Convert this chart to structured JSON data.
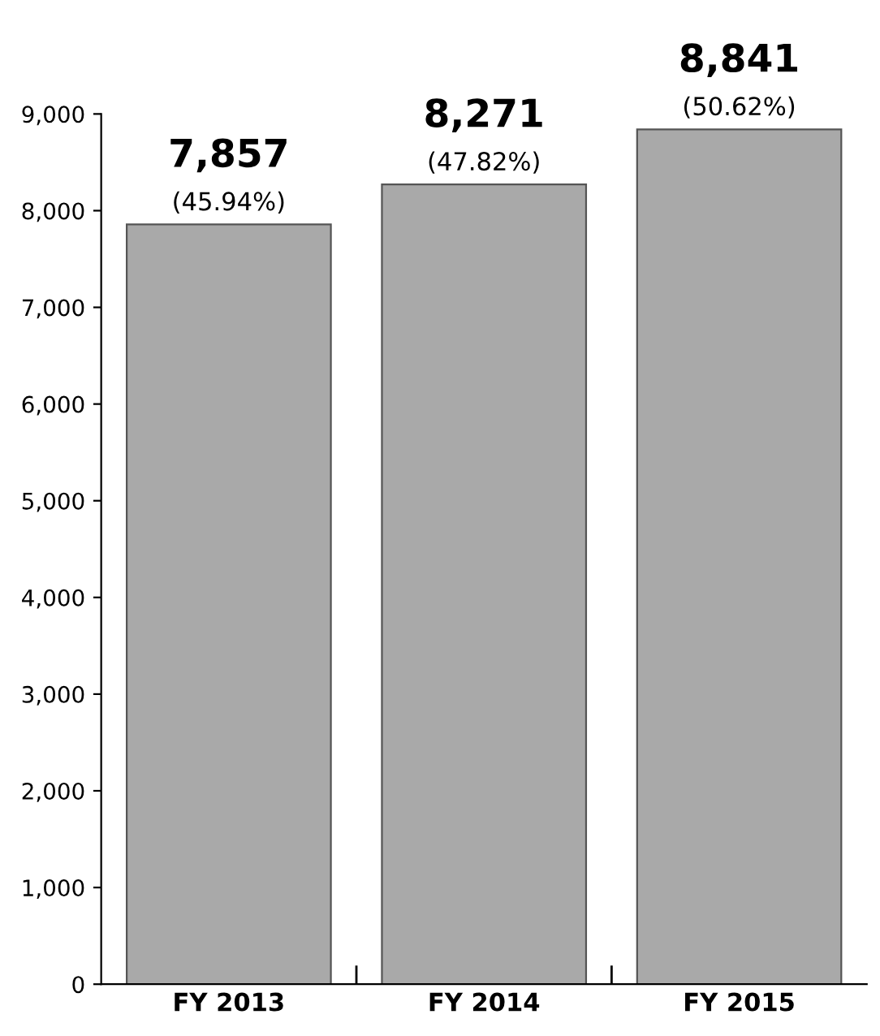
{
  "chart_data": {
    "type": "bar",
    "categories": [
      "FY 2013",
      "FY 2014",
      "FY 2015"
    ],
    "values": [
      7857,
      8271,
      8841
    ],
    "color": "#a9a9a9",
    "value_labels": [
      "7,857",
      "8,271",
      "8,841"
    ],
    "annotations": [
      {
        "text": "(45.94%)",
        "x": "FY 2013",
        "y": 7857
      },
      {
        "text": "(47.82%)",
        "x": "FY 2014",
        "y": 8271
      },
      {
        "text": "(50.62%)",
        "x": "FY 2015",
        "y": 8841
      }
    ],
    "ylim": [
      0,
      9000
    ],
    "yticks": [
      0,
      {
        "value": 1000,
        "label": "1,000"
      },
      {
        "value": 2000,
        "label": "2,000"
      },
      {
        "value": 3000,
        "label": "3,000"
      },
      {
        "value": 4000,
        "label": "4,000"
      },
      {
        "value": 5000,
        "label": "5,000"
      },
      {
        "value": 6000,
        "label": "6,000"
      },
      {
        "value": 7000,
        "label": "7,000"
      },
      {
        "value": 8000,
        "label": "8,000"
      },
      {
        "value": 9000,
        "label": "9,000"
      }
    ],
    "grid": false
  }
}
